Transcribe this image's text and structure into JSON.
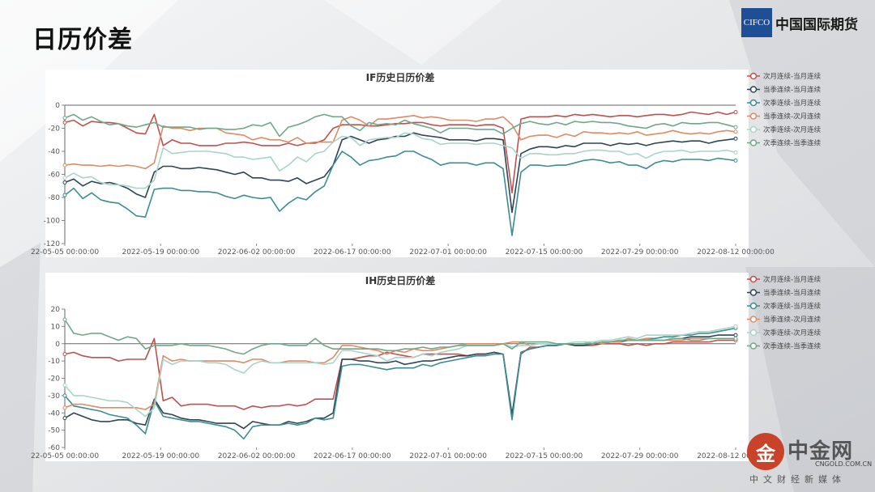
{
  "page": {
    "title": "日历价差"
  },
  "logo": {
    "mark": "CIFCO",
    "name": "中国国际期货"
  },
  "watermark": {
    "glyph": "金",
    "name": "中金网",
    "url": "CNGOLD.COM.CN",
    "sub": "中文财经新媒体"
  },
  "chart_data": [
    {
      "type": "line",
      "title": "IF历史日历价差",
      "ylim": [
        -120,
        0
      ],
      "yticks": [
        0,
        -20,
        -40,
        -60,
        -80,
        -100,
        -120
      ],
      "xtick_labels": [
        "22-05-05 00:00:00",
        "2022-05-19 00:00:00",
        "2022-06-02 00:00:00",
        "2022-06-17 00:00:00",
        "2022-07-01 00:00:00",
        "2022-07-15 00:00:00",
        "2022-07-29 00:00:00",
        "2022-08-12 00:00:00"
      ],
      "legend_position": "right",
      "series": [
        {
          "name": "次月连续-当月连续",
          "color": "#c0504d",
          "values": [
            -15,
            -13,
            -18,
            -14,
            -15,
            -15,
            -16,
            -20,
            -24,
            -25,
            -8,
            -35,
            -30,
            -33,
            -33,
            -35,
            -35,
            -35,
            -33,
            -33,
            -32,
            -33,
            -35,
            -35,
            -35,
            -33,
            -35,
            -33,
            -33,
            -30,
            -20,
            -17,
            -17,
            -17,
            -18,
            -18,
            -17,
            -16,
            -16,
            -15,
            -15,
            -17,
            -18,
            -17,
            -17,
            -17,
            -18,
            -17,
            -17,
            -20,
            -76,
            -12,
            -10,
            -10,
            -10,
            -9,
            -10,
            -8,
            -9,
            -8,
            -9,
            -10,
            -9,
            -9,
            -10,
            -9,
            -8,
            -8,
            -9,
            -8,
            -6,
            -7,
            -8,
            -6,
            -8,
            -6
          ]
        },
        {
          "name": "当季连续-当月连续",
          "color": "#2f4454",
          "values": [
            -67,
            -64,
            -70,
            -66,
            -68,
            -67,
            -69,
            -72,
            -77,
            -80,
            -58,
            -53,
            -53,
            -55,
            -55,
            -54,
            -55,
            -56,
            -58,
            -60,
            -58,
            -63,
            -63,
            -65,
            -65,
            -66,
            -63,
            -68,
            -65,
            -62,
            -52,
            -30,
            -27,
            -30,
            -33,
            -30,
            -29,
            -27,
            -27,
            -24,
            -26,
            -27,
            -28,
            -30,
            -30,
            -30,
            -31,
            -29,
            -29,
            -30,
            -93,
            -42,
            -38,
            -36,
            -36,
            -37,
            -35,
            -36,
            -33,
            -33,
            -33,
            -35,
            -33,
            -34,
            -33,
            -35,
            -33,
            -32,
            -31,
            -32,
            -31,
            -31,
            -33,
            -31,
            -30,
            -29
          ]
        },
        {
          "name": "次季连续-当月连续",
          "color": "#3c8d93",
          "values": [
            -78,
            -72,
            -81,
            -76,
            -82,
            -84,
            -85,
            -90,
            -96,
            -97,
            -73,
            -72,
            -72,
            -74,
            -74,
            -75,
            -75,
            -76,
            -79,
            -81,
            -78,
            -80,
            -81,
            -80,
            -92,
            -85,
            -80,
            -82,
            -75,
            -70,
            -52,
            -40,
            -45,
            -52,
            -48,
            -47,
            -45,
            -44,
            -40,
            -40,
            -44,
            -47,
            -52,
            -50,
            -50,
            -50,
            -52,
            -50,
            -50,
            -55,
            -113,
            -58,
            -52,
            -52,
            -53,
            -52,
            -52,
            -50,
            -48,
            -47,
            -48,
            -50,
            -49,
            -52,
            -52,
            -55,
            -50,
            -48,
            -49,
            -47,
            -47,
            -47,
            -48,
            -46,
            -47,
            -48
          ]
        },
        {
          "name": "当季连续-次月连续",
          "color": "#e08a66",
          "values": [
            -52,
            -51,
            -52,
            -52,
            -53,
            -52,
            -53,
            -52,
            -53,
            -55,
            -50,
            -18,
            -20,
            -20,
            -22,
            -20,
            -20,
            -20,
            -24,
            -25,
            -26,
            -30,
            -28,
            -30,
            -30,
            -32,
            -28,
            -33,
            -32,
            -32,
            -32,
            -13,
            -10,
            -13,
            -18,
            -12,
            -12,
            -11,
            -10,
            -9,
            -11,
            -10,
            -11,
            -13,
            -13,
            -13,
            -14,
            -12,
            -12,
            -10,
            -17,
            -30,
            -27,
            -26,
            -26,
            -28,
            -25,
            -27,
            -23,
            -24,
            -24,
            -25,
            -24,
            -25,
            -23,
            -26,
            -25,
            -24,
            -22,
            -24,
            -25,
            -24,
            -25,
            -23,
            -22,
            -23
          ]
        },
        {
          "name": "次季连续-次月连续",
          "color": "#a9d4c9",
          "values": [
            -63,
            -59,
            -63,
            -62,
            -67,
            -69,
            -69,
            -70,
            -72,
            -72,
            -65,
            -37,
            -42,
            -41,
            -40,
            -40,
            -40,
            -41,
            -42,
            -45,
            -45,
            -47,
            -46,
            -45,
            -57,
            -52,
            -45,
            -49,
            -42,
            -40,
            -32,
            -27,
            -28,
            -35,
            -30,
            -29,
            -28,
            -28,
            -24,
            -25,
            -29,
            -30,
            -34,
            -33,
            -33,
            -33,
            -34,
            -33,
            -33,
            -35,
            -37,
            -46,
            -42,
            -42,
            -43,
            -43,
            -42,
            -42,
            -40,
            -39,
            -39,
            -40,
            -40,
            -43,
            -42,
            -46,
            -42,
            -40,
            -40,
            -39,
            -41,
            -40,
            -40,
            -40,
            -39,
            -41
          ]
        },
        {
          "name": "次季连续-当季连续",
          "color": "#6fa889",
          "values": [
            -11,
            -8,
            -13,
            -10,
            -14,
            -17,
            -16,
            -18,
            -19,
            -17,
            -15,
            -19,
            -19,
            -19,
            -19,
            -21,
            -20,
            -20,
            -21,
            -21,
            -20,
            -17,
            -18,
            -15,
            -27,
            -19,
            -17,
            -14,
            -10,
            -8,
            -10,
            -10,
            -18,
            -22,
            -15,
            -17,
            -16,
            -17,
            -13,
            -16,
            -18,
            -20,
            -24,
            -20,
            -20,
            -20,
            -21,
            -21,
            -21,
            -25,
            -20,
            -16,
            -14,
            -16,
            -17,
            -15,
            -17,
            -14,
            -15,
            -14,
            -15,
            -15,
            -16,
            -18,
            -19,
            -20,
            -17,
            -16,
            -18,
            -15,
            -16,
            -16,
            -15,
            -15,
            -17,
            -19
          ]
        }
      ]
    },
    {
      "type": "line",
      "title": "IH历史日历价差",
      "ylim": [
        -60,
        20
      ],
      "yticks": [
        20,
        10,
        0,
        -10,
        -20,
        -30,
        -40,
        -50,
        -60
      ],
      "xtick_labels": [
        "22-05-05 00:00:00",
        "2022-05-19 00:00:00",
        "2022-06-02 00:00:00",
        "2022-06-17 00:00:00",
        "2022-07-01 00:00:00",
        "2022-07-15 00:00:00",
        "2022-07-29 00:00:00",
        "2022-08-12 00:00:00"
      ],
      "legend_position": "right",
      "series": [
        {
          "name": "次月连续-当月连续",
          "color": "#c0504d",
          "values": [
            -6,
            -5,
            -7,
            -8,
            -8,
            -8,
            -10,
            -9,
            -9,
            -9,
            3,
            -33,
            -31,
            -36,
            -35,
            -35,
            -35,
            -36,
            -36,
            -36,
            -38,
            -36,
            -37,
            -36,
            -36,
            -35,
            -36,
            -35,
            -32,
            -32,
            -32,
            -9,
            -9,
            -8,
            -7,
            -7,
            -5,
            -6,
            -7,
            -8,
            -6,
            -6,
            -6,
            -6,
            -6,
            -7,
            -6,
            -6,
            -5,
            -6,
            -42,
            -6,
            -2,
            -2,
            -1,
            -1,
            0,
            -1,
            -1,
            -1,
            0,
            0,
            0,
            -1,
            0,
            -1,
            0,
            0,
            1,
            1,
            1,
            1,
            1,
            2,
            2,
            2
          ]
        },
        {
          "name": "当季连续-当月连续",
          "color": "#2f4454",
          "values": [
            -43,
            -40,
            -42,
            -44,
            -45,
            -45,
            -44,
            -44,
            -46,
            -47,
            -32,
            -40,
            -41,
            -43,
            -44,
            -44,
            -45,
            -46,
            -46,
            -46,
            -49,
            -45,
            -46,
            -47,
            -47,
            -45,
            -46,
            -45,
            -43,
            -43,
            -40,
            -9,
            -9,
            -10,
            -10,
            -11,
            -11,
            -10,
            -12,
            -11,
            -10,
            -10,
            -9,
            -8,
            -7,
            -7,
            -6,
            -6,
            -5,
            -6,
            -41,
            -5,
            -3,
            -2,
            -1,
            -1,
            0,
            -1,
            -1,
            0,
            0,
            1,
            1,
            2,
            2,
            2,
            2,
            2,
            3,
            3,
            4,
            4,
            4,
            5,
            5,
            5
          ]
        },
        {
          "name": "次季连续-当月连续",
          "color": "#3c8d93",
          "values": [
            -30,
            -36,
            -37,
            -38,
            -39,
            -41,
            -42,
            -43,
            -47,
            -52,
            -33,
            -42,
            -43,
            -44,
            -45,
            -45,
            -46,
            -47,
            -48,
            -50,
            -55,
            -48,
            -47,
            -47,
            -47,
            -46,
            -47,
            -46,
            -43,
            -44,
            -43,
            -13,
            -12,
            -12,
            -13,
            -14,
            -15,
            -14,
            -14,
            -14,
            -12,
            -13,
            -11,
            -10,
            -9,
            -8,
            -7,
            -7,
            -6,
            -6,
            -44,
            -5,
            -3,
            -2,
            -1,
            -1,
            0,
            0,
            0,
            0,
            1,
            1,
            2,
            2,
            2,
            3,
            3,
            4,
            4,
            5,
            5,
            6,
            6,
            7,
            8,
            9
          ]
        },
        {
          "name": "当季连续-次月连续",
          "color": "#e08a66",
          "values": [
            -37,
            -35,
            -35,
            -36,
            -37,
            -37,
            -37,
            -37,
            -37,
            -38,
            -35,
            -7,
            -10,
            -9,
            -10,
            -10,
            -10,
            -10,
            -10,
            -10,
            -11,
            -9,
            -9,
            -11,
            -11,
            -10,
            -10,
            -10,
            -11,
            -11,
            -8,
            -1,
            -1,
            -2,
            -3,
            -4,
            -6,
            -4,
            -5,
            -3,
            -4,
            -4,
            -3,
            -2,
            -1,
            0,
            0,
            0,
            0,
            0,
            1,
            1,
            -1,
            0,
            0,
            0,
            0,
            0,
            0,
            1,
            0,
            1,
            1,
            3,
            2,
            3,
            2,
            2,
            2,
            2,
            3,
            3,
            3,
            3,
            3,
            3
          ]
        },
        {
          "name": "次季连续-次月连续",
          "color": "#a9d4c9",
          "values": [
            -24,
            -30,
            -30,
            -31,
            -32,
            -33,
            -33,
            -34,
            -38,
            -42,
            -37,
            -9,
            -12,
            -10,
            -10,
            -10,
            -11,
            -11,
            -12,
            -15,
            -17,
            -12,
            -10,
            -11,
            -11,
            -11,
            -11,
            -11,
            -11,
            -12,
            -11,
            -4,
            -4,
            -5,
            -6,
            -7,
            -10,
            -8,
            -8,
            -8,
            -6,
            -7,
            -5,
            -4,
            -3,
            -1,
            -1,
            -1,
            -1,
            0,
            -2,
            -1,
            -1,
            0,
            0,
            0,
            0,
            1,
            1,
            1,
            2,
            2,
            3,
            4,
            3,
            5,
            5,
            5,
            5,
            5,
            6,
            7,
            7,
            8,
            9,
            10
          ]
        },
        {
          "name": "次季连续-当季连续",
          "color": "#6fa889",
          "values": [
            14,
            6,
            5,
            6,
            6,
            4,
            2,
            4,
            3,
            -3,
            -1,
            -1,
            -1,
            0,
            -1,
            -1,
            -1,
            -2,
            -3,
            -5,
            -6,
            -3,
            -1,
            0,
            0,
            -1,
            -1,
            -1,
            3,
            -1,
            -3,
            -3,
            -3,
            -3,
            -3,
            -3,
            -4,
            -4,
            -3,
            -3,
            -2,
            -3,
            -2,
            -2,
            -1,
            -1,
            -1,
            -1,
            -1,
            0,
            -3,
            1,
            1,
            1,
            1,
            0,
            0,
            0,
            0,
            0,
            1,
            1,
            2,
            2,
            2,
            2,
            2,
            2,
            3,
            3,
            2,
            2,
            3,
            3,
            3,
            3
          ]
        }
      ]
    }
  ]
}
